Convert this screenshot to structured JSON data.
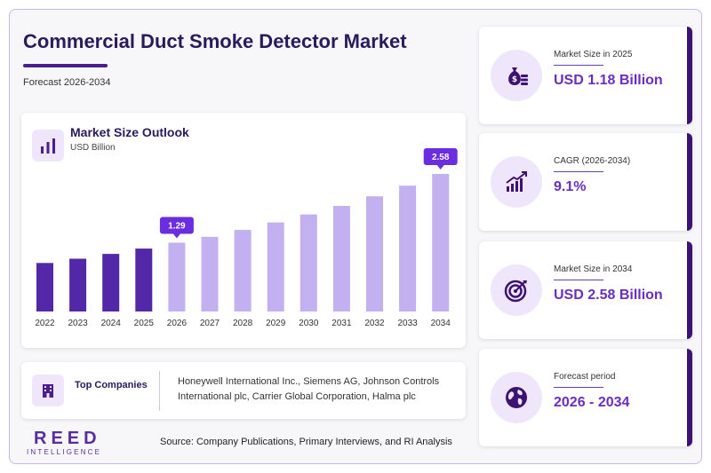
{
  "header": {
    "title": "Commercial Duct Smoke Detector Market",
    "subtitle": "Forecast 2026-2034"
  },
  "chart_card": {
    "title": "Market Size Outlook",
    "unit": "USD Billion",
    "icon": "bar-chart-icon"
  },
  "chart_data": {
    "type": "bar",
    "title": "Market Size Outlook",
    "ylabel": "USD Billion",
    "categories": [
      "2022",
      "2023",
      "2024",
      "2025",
      "2026",
      "2027",
      "2028",
      "2029",
      "2030",
      "2031",
      "2032",
      "2033",
      "2034"
    ],
    "values": [
      0.91,
      0.99,
      1.08,
      1.18,
      1.29,
      1.4,
      1.53,
      1.67,
      1.82,
      1.98,
      2.16,
      2.36,
      2.58
    ],
    "callouts": {
      "2026": "1.29",
      "2034": "2.58"
    },
    "ylim": [
      0,
      2.58
    ],
    "colors": {
      "historical": "#5227a8",
      "forecast": "#c3b0f0",
      "callout": "#6a2ee0"
    },
    "grid": false,
    "legend": "none"
  },
  "companies": {
    "label": "Top Companies",
    "text": "Honeywell International Inc., Siemens AG, Johnson Controls International plc, Carrier Global Corporation, Halma plc",
    "icon": "building-icon"
  },
  "logo": {
    "main": "REED",
    "sub": "INTELLIGENCE"
  },
  "source": "Source: Company Publications, Primary Interviews, and RI Analysis",
  "kpis": [
    {
      "label": "Market Size in 2025",
      "value": "USD 1.18 Billion",
      "icon": "money-bag-icon"
    },
    {
      "label": "CAGR (2026-2034)",
      "value": "9.1%",
      "icon": "growth-chart-icon"
    },
    {
      "label": "Market Size in 2034",
      "value": "USD 2.58 Billion",
      "icon": "target-icon"
    },
    {
      "label": "Forecast period",
      "value": "2026 - 2034",
      "icon": "globe-icon"
    }
  ],
  "colors": {
    "primary": "#2a1a5e",
    "accent": "#6a2ec4",
    "dark_border": "#3d1273"
  }
}
